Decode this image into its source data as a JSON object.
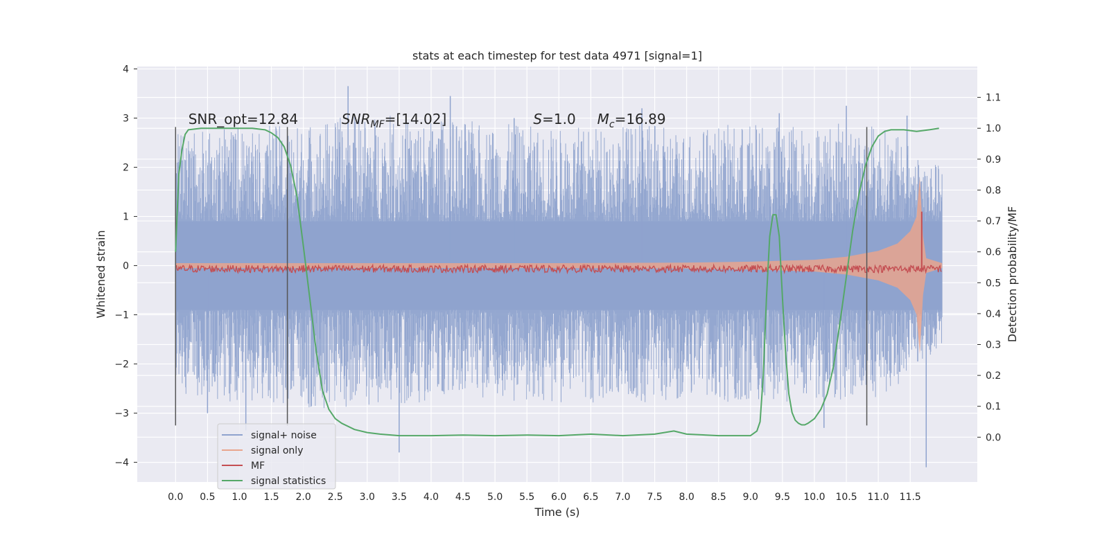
{
  "chart_data": {
    "type": "line",
    "title": "stats at each timestep for test data 4971 [signal=1]",
    "xlabel": "Time (s)",
    "ylabel": "Whitened strain",
    "y2label": "Detection probability/MF",
    "xlim": [
      -0.6,
      12.55
    ],
    "ylim": [
      -4.4,
      4.05
    ],
    "y2lim": [
      -0.145,
      1.2
    ],
    "xticks": [
      0.0,
      0.5,
      1.0,
      1.5,
      2.0,
      2.5,
      3.0,
      3.5,
      4.0,
      4.5,
      5.0,
      5.5,
      6.0,
      6.5,
      7.0,
      7.5,
      8.0,
      8.5,
      9.0,
      9.5,
      10.0,
      10.5,
      11.0,
      11.5
    ],
    "xtick_labels": [
      "0.0",
      "0.5",
      "1.0",
      "1.5",
      "2.0",
      "2.5",
      "3.0",
      "3.5",
      "4.0",
      "4.5",
      "5.0",
      "5.5",
      "6.0",
      "6.5",
      "7.0",
      "7.5",
      "8.0",
      "8.5",
      "9.0",
      "9.5",
      "10.0",
      "10.5",
      "11.0",
      "11.5"
    ],
    "yticks": [
      4,
      3,
      2,
      1,
      0,
      -1,
      -2,
      -3,
      -4
    ],
    "ytick_labels": [
      "4",
      "3",
      "2",
      "1",
      "0",
      "−1",
      "−2",
      "−3",
      "−4"
    ],
    "y2ticks": [
      1.1,
      1.0,
      0.9,
      0.8,
      0.7,
      0.6,
      0.5,
      0.4,
      0.3,
      0.2,
      0.1,
      0.0
    ],
    "y2tick_labels": [
      "1.1",
      "1.0",
      "0.9",
      "0.8",
      "0.7",
      "0.6",
      "0.5",
      "0.4",
      "0.3",
      "0.2",
      "0.1",
      "0.0"
    ],
    "grid": true,
    "legend_position": "lower-left",
    "series": [
      {
        "name": "signal+ noise",
        "color": "#8fa3ce",
        "axis": "left",
        "x_range": [
          0.0,
          12.0
        ],
        "band_x": [
          0.0,
          1.0,
          2.0,
          3.0,
          4.0,
          5.0,
          6.0,
          7.0,
          8.0,
          9.0,
          10.0,
          11.0,
          12.0
        ],
        "band_low": [
          -2.7,
          -2.8,
          -2.9,
          -2.9,
          -2.8,
          -2.8,
          -2.8,
          -2.8,
          -2.8,
          -2.8,
          -2.8,
          -2.8,
          -1.6
        ],
        "band_high": [
          2.7,
          2.8,
          2.9,
          3.1,
          3.0,
          2.9,
          2.8,
          2.9,
          2.8,
          2.9,
          2.9,
          2.9,
          2.0
        ],
        "spikes": [
          {
            "x": 2.7,
            "y": 3.65
          },
          {
            "x": 4.3,
            "y": 3.45
          },
          {
            "x": 3.5,
            "y": -3.8
          },
          {
            "x": 11.75,
            "y": -4.1
          },
          {
            "x": 10.15,
            "y": -3.3
          },
          {
            "x": 1.1,
            "y": -3.35
          },
          {
            "x": 9.45,
            "y": 3.1
          },
          {
            "x": 10.5,
            "y": 3.25
          },
          {
            "x": 11.45,
            "y": 3.05
          },
          {
            "x": 5.3,
            "y": 3.0
          },
          {
            "x": 7.3,
            "y": 3.2
          },
          {
            "x": 0.5,
            "y": -3.0
          }
        ]
      },
      {
        "name": "signal only",
        "color": "#e9a58d",
        "axis": "left",
        "envelope_x": [
          0.0,
          2.0,
          4.0,
          6.0,
          8.0,
          9.0,
          10.0,
          10.5,
          11.0,
          11.3,
          11.5,
          11.6,
          11.65,
          11.7,
          11.75,
          12.0
        ],
        "envelope_amp": [
          0.05,
          0.05,
          0.05,
          0.05,
          0.06,
          0.08,
          0.12,
          0.18,
          0.3,
          0.45,
          0.7,
          1.0,
          1.8,
          0.6,
          0.15,
          0.05
        ]
      },
      {
        "name": "MF",
        "color": "#c44e52",
        "axis": "right",
        "x_range": [
          0.0,
          12.0
        ],
        "level": 0.545,
        "noise_amp": 0.012,
        "peak": {
          "x": 11.68,
          "y": 0.73
        }
      },
      {
        "name": "signal statistics",
        "color": "#55a868",
        "axis": "right",
        "x": [
          0.0,
          0.05,
          0.1,
          0.15,
          0.2,
          0.4,
          0.8,
          1.2,
          1.4,
          1.5,
          1.6,
          1.7,
          1.8,
          1.9,
          2.0,
          2.1,
          2.2,
          2.3,
          2.4,
          2.5,
          2.6,
          2.8,
          3.0,
          3.2,
          3.5,
          4.0,
          4.5,
          5.0,
          5.5,
          6.0,
          6.5,
          7.0,
          7.5,
          7.8,
          8.0,
          8.5,
          9.0,
          9.1,
          9.15,
          9.2,
          9.25,
          9.3,
          9.35,
          9.4,
          9.45,
          9.5,
          9.55,
          9.6,
          9.65,
          9.7,
          9.75,
          9.8,
          9.85,
          9.9,
          10.0,
          10.1,
          10.2,
          10.3,
          10.4,
          10.5,
          10.6,
          10.7,
          10.8,
          10.9,
          11.0,
          11.1,
          11.2,
          11.4,
          11.6,
          11.8,
          11.95
        ],
        "y": [
          0.6,
          0.85,
          0.93,
          0.98,
          0.995,
          1.0,
          1.0,
          1.0,
          0.995,
          0.985,
          0.97,
          0.94,
          0.88,
          0.78,
          0.62,
          0.45,
          0.28,
          0.15,
          0.09,
          0.06,
          0.045,
          0.025,
          0.015,
          0.01,
          0.005,
          0.005,
          0.007,
          0.005,
          0.007,
          0.005,
          0.01,
          0.005,
          0.01,
          0.02,
          0.01,
          0.005,
          0.005,
          0.02,
          0.05,
          0.2,
          0.45,
          0.65,
          0.72,
          0.72,
          0.65,
          0.45,
          0.27,
          0.14,
          0.08,
          0.055,
          0.045,
          0.04,
          0.04,
          0.045,
          0.06,
          0.09,
          0.14,
          0.23,
          0.37,
          0.52,
          0.67,
          0.79,
          0.88,
          0.94,
          0.975,
          0.99,
          0.995,
          0.995,
          0.99,
          0.995,
          1.0
        ]
      }
    ],
    "vertical_lines": [
      0.0,
      1.75,
      10.82
    ],
    "vertical_line_range": [
      -3.25,
      2.82
    ],
    "annotations": [
      {
        "text": "SNR_opt=12.84",
        "x": 0.2,
        "y": 2.88
      },
      {
        "text": "SNR_MF=[14.02]",
        "x": 2.6,
        "y": 2.88
      },
      {
        "text": "S=1.0",
        "x": 5.6,
        "y": 2.88
      },
      {
        "text": "M_c=16.89",
        "x": 6.6,
        "y": 2.88
      }
    ]
  }
}
